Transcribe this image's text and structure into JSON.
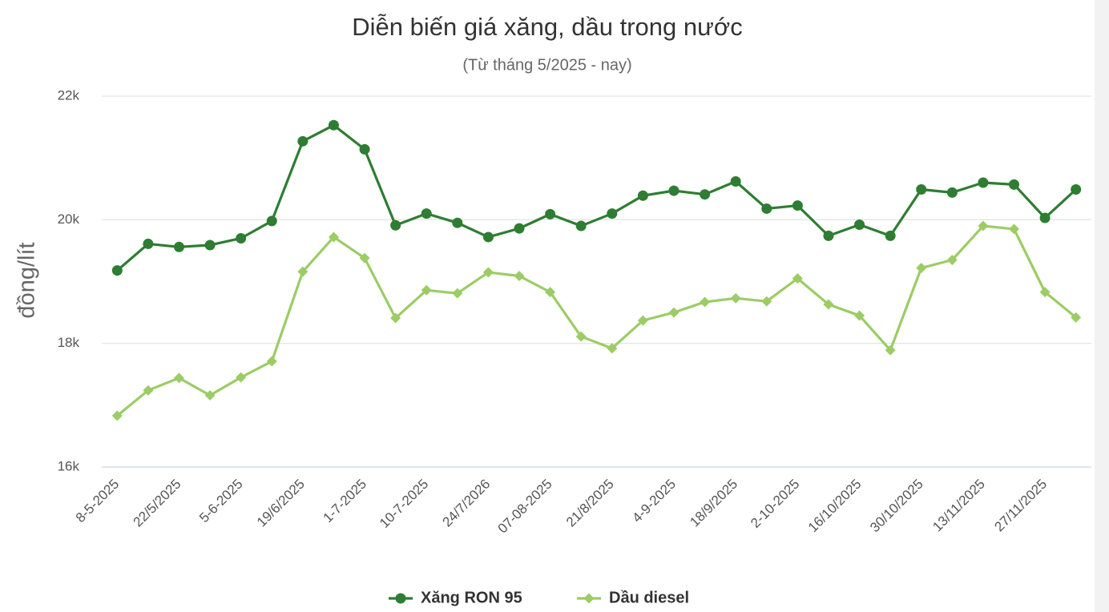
{
  "chart_data": {
    "type": "line",
    "title": "Diễn biến giá xăng, dầu trong nước",
    "subtitle": "(Từ tháng 5/2025 - nay)",
    "y_label": "đồng/lít",
    "categories": [
      "8-5-2025",
      null,
      "22/5/2025",
      null,
      "5-6-2025",
      null,
      "19/6/2025",
      null,
      "1-7-2025",
      null,
      "10-7-2025",
      null,
      "24/7/2026",
      null,
      "07-08-2025",
      null,
      "21/8/2025",
      null,
      "4-9-2025",
      null,
      "18/9/2025",
      null,
      "2-10-2025",
      null,
      "16/10/2025",
      null,
      "30/10/2025",
      null,
      "13/11/2025",
      null,
      "27/11/2025",
      null
    ],
    "series": [
      {
        "name": "Xăng RON 95",
        "color": "#2e7d32",
        "marker": "circle",
        "values": [
          19180,
          19610,
          19560,
          19590,
          19700,
          19980,
          21270,
          21530,
          21140,
          19910,
          20100,
          19950,
          19720,
          19860,
          20090,
          19900,
          20100,
          20390,
          20470,
          20410,
          20620,
          20180,
          20230,
          19740,
          19920,
          19740,
          20490,
          20440,
          20600,
          20570,
          20030,
          20490
        ]
      },
      {
        "name": "Dầu diesel",
        "color": "#9ccc65",
        "marker": "diamond",
        "values": [
          16830,
          17240,
          17440,
          17160,
          17450,
          17710,
          19160,
          19720,
          19380,
          18410,
          18860,
          18810,
          19150,
          19090,
          18830,
          18110,
          17920,
          18370,
          18500,
          18670,
          18730,
          18680,
          19050,
          18630,
          18450,
          17890,
          19220,
          19350,
          19900,
          19850,
          18830,
          18420
        ]
      }
    ],
    "ylim": [
      16000,
      22000
    ],
    "yticks": [
      {
        "value": 16000,
        "label": "16k"
      },
      {
        "value": 18000,
        "label": "18k"
      },
      {
        "value": 20000,
        "label": "20k"
      },
      {
        "value": 22000,
        "label": "22k"
      }
    ],
    "grid": true
  }
}
